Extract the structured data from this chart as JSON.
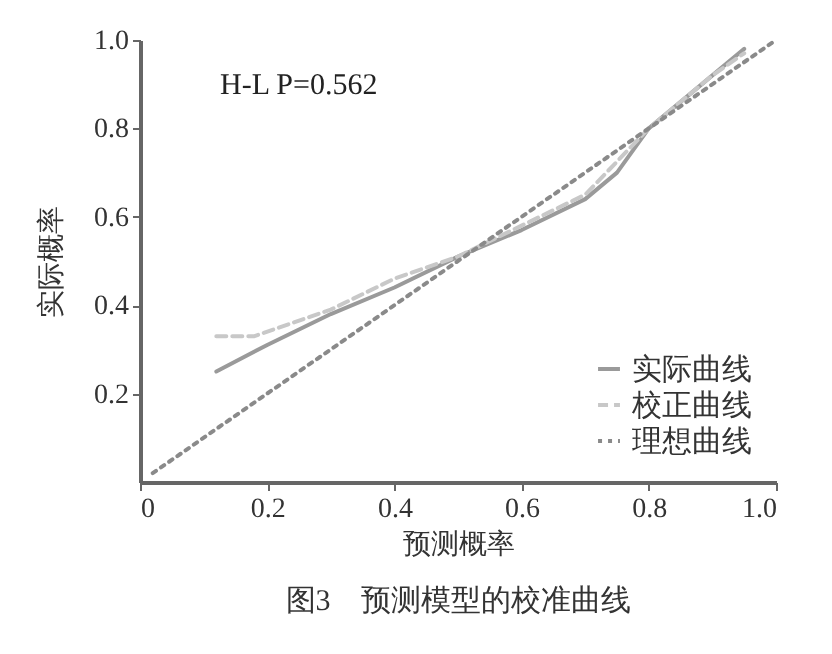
{
  "chart_data": {
    "type": "line",
    "title": "图3　预测模型的校准曲线",
    "xlabel": "预测概率",
    "ylabel": "实际概率",
    "annotations": [
      "H-L P=0.562"
    ],
    "series": [
      {
        "name": "实际曲线",
        "color": "#9a9a9a",
        "line_style": "solid",
        "x": [
          0.12,
          0.2,
          0.3,
          0.4,
          0.5,
          0.6,
          0.7,
          0.75,
          0.8,
          0.9,
          0.95
        ],
        "values": [
          0.25,
          0.31,
          0.38,
          0.44,
          0.51,
          0.57,
          0.64,
          0.7,
          0.8,
          0.92,
          0.98
        ]
      },
      {
        "name": "校正曲线",
        "color": "#c8c8c8",
        "line_style": "dashed",
        "x": [
          0.12,
          0.18,
          0.3,
          0.4,
          0.5,
          0.6,
          0.7,
          0.8,
          0.9,
          0.95
        ],
        "values": [
          0.33,
          0.33,
          0.39,
          0.46,
          0.51,
          0.58,
          0.65,
          0.8,
          0.92,
          0.97
        ]
      },
      {
        "name": "理想曲线",
        "color": "#8a8a8a",
        "line_style": "dotted",
        "x": [
          0.02,
          1.0
        ],
        "values": [
          0.02,
          1.0
        ]
      }
    ],
    "xlim": [
      0,
      1
    ],
    "ylim": [
      0,
      1
    ],
    "xticks": [
      0,
      0.2,
      0.4,
      0.6,
      0.8,
      {
        "value": 1,
        "label": "1.0"
      }
    ],
    "yticks": [
      0.2,
      0.4,
      0.6,
      0.8,
      {
        "value": 1,
        "label": "1.0"
      }
    ],
    "grid": false,
    "legend": "bottom right"
  }
}
